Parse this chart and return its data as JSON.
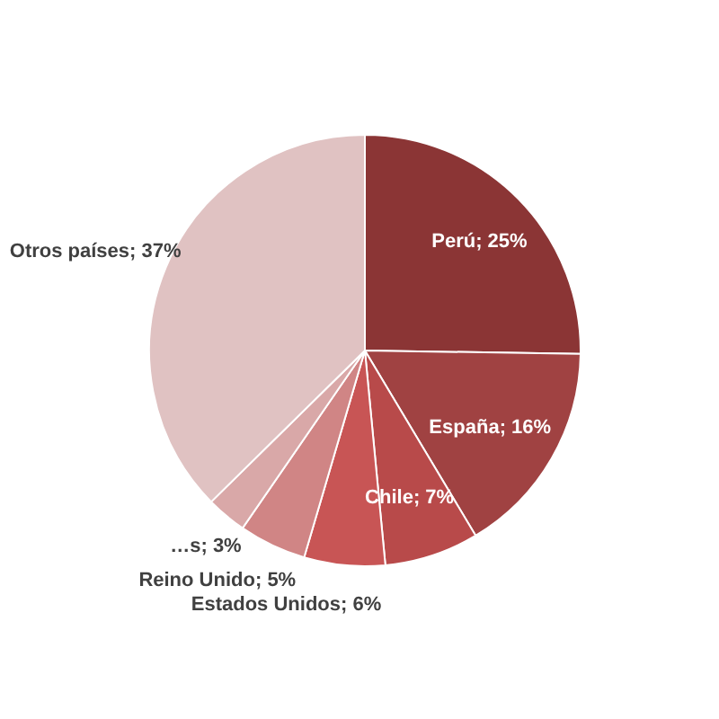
{
  "chart_data": {
    "type": "pie",
    "categories": [
      "Perú",
      "España",
      "Chile",
      "Estados Unidos",
      "Reino Unido",
      "…s",
      "Otros países"
    ],
    "values": [
      25,
      16,
      7,
      6,
      5,
      3,
      37
    ],
    "value_labels": [
      "; 25%",
      "; 16%",
      "; 7%",
      "; 6%",
      "; 5%",
      "; 3%",
      "; 37%"
    ],
    "colors": [
      "#8b3535",
      "#a04242",
      "#b84a4a",
      "#c85555",
      "#d08585",
      "#d9a8a8",
      "#e0c2c2"
    ],
    "legend": false
  }
}
